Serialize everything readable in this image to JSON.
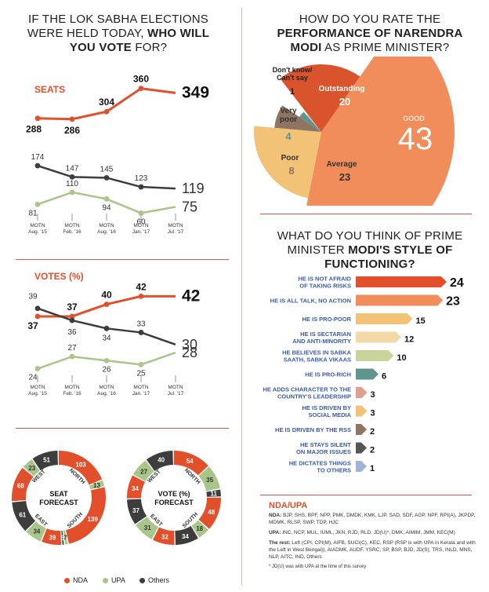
{
  "seats_chart": {
    "title_lines": [
      "IF THE LOK SABHA ELECTIONS",
      "WERE HELD TODAY,",
      "WHO WILL",
      "YOU VOTE",
      "FOR?"
    ],
    "label": "SEATS",
    "colors": {
      "nda": "#e2502b",
      "others": "#3d3d3d",
      "upa": "#a8c58a"
    }
  },
  "chart_data": [
    {
      "type": "line",
      "label": "SEATS",
      "categories": [
        "MOTN Aug. '15",
        "MOTN Feb. '16",
        "MOTN Aug. '16",
        "MOTN Jan. '17",
        "MOTN Jul. '17"
      ],
      "series": [
        {
          "name": "NDA",
          "values": [
            288,
            286,
            304,
            360,
            349
          ]
        },
        {
          "name": "Others",
          "values": [
            174,
            147,
            145,
            123,
            119
          ]
        },
        {
          "name": "UPA",
          "values": [
            81,
            110,
            94,
            60,
            75
          ]
        }
      ],
      "ylim": [
        40,
        380
      ]
    },
    {
      "type": "line",
      "label": "VOTES (%)",
      "categories": [
        "MOTN Aug. '15",
        "MOTN Feb. '16",
        "MOTN Aug. '16",
        "MOTN Jan. '17",
        "MOTN Jul. '17"
      ],
      "series": [
        {
          "name": "NDA",
          "values": [
            37,
            37,
            40,
            42,
            42
          ]
        },
        {
          "name": "Others",
          "values": [
            39,
            36,
            34,
            33,
            30
          ]
        },
        {
          "name": "UPA",
          "values": [
            24,
            27,
            26,
            25,
            28
          ]
        }
      ],
      "ylim": [
        20,
        45
      ]
    },
    {
      "type": "pie",
      "title_lines": [
        "HOW DO YOU RATE THE",
        "PERFORMANCE OF NARENDRA",
        "MODI",
        "AS PRIME MINISTER?"
      ],
      "slices": [
        {
          "label": "GOOD",
          "value": 43,
          "display": "43",
          "color": "#f08d5b"
        },
        {
          "label": "Average",
          "value": 23,
          "display": "23",
          "color": "#f2c277"
        },
        {
          "label": "Poor",
          "value": 8,
          "display": "8",
          "color": "#8f7560"
        },
        {
          "label": "Very poor",
          "value": 4,
          "display": "4",
          "color": "#5f958f"
        },
        {
          "label": "Don't know/ Can't say",
          "value": 1,
          "display": "1",
          "color": "#cccccc"
        },
        {
          "label": "Outstanding",
          "value": 20,
          "display": "20",
          "color": "#d9532c"
        }
      ]
    },
    {
      "type": "bar",
      "title_lines": [
        "WHAT DO YOU THINK OF PRIME",
        "MINISTER",
        "MODI'S STYLE OF",
        "FUNCTIONING?"
      ],
      "categories": [
        "HE IS NOT AFRAID OF TAKING RISKS",
        "HE IS ALL TALK, NO ACTION",
        "HE IS PRO-POOR",
        "HE IS SECTARIAN AND ANTI-MINORITY",
        "HE BELIEVES IN SABKA SAATH, SABKA VIKAAS",
        "HE IS PRO-RICH",
        "HE ADDS CHARACTER TO THE COUNTRY'S LEADERSHIP",
        "HE IS DRIVEN BY SOCIAL MEDIA",
        "HE IS DRIVEN BY THE RSS",
        "HE STAYS SILENT ON MAJOR ISSUES",
        "HE DICTATES THINGS TO OTHERS"
      ],
      "label_lines": [
        [
          "HE IS NOT AFRAID",
          "OF TAKING RISKS"
        ],
        [
          "HE IS ALL TALK, NO ACTION"
        ],
        [
          "HE IS PRO-POOR"
        ],
        [
          "HE IS SECTARIAN",
          "AND ANTI-MINORITY"
        ],
        [
          "HE BELIEVES IN SABKA",
          "SAATH, SABKA VIKAAS"
        ],
        [
          "HE IS PRO-RICH"
        ],
        [
          "HE ADDS CHARACTER TO THE",
          "COUNTRY'S LEADERSHIP"
        ],
        [
          "HE IS DRIVEN BY",
          "SOCIAL MEDIA"
        ],
        [
          "HE IS DRIVEN BY THE RSS"
        ],
        [
          "HE STAYS SILENT",
          "ON MAJOR ISSUES"
        ],
        [
          "HE DICTATES THINGS",
          "TO OTHERS"
        ]
      ],
      "values": [
        24,
        23,
        15,
        12,
        10,
        6,
        3,
        3,
        2,
        2,
        1
      ],
      "colors": [
        "#e2502b",
        "#f08d5b",
        "#f2c277",
        "#f4d9a8",
        "#c8d49a",
        "#5f958f",
        "#e2a08c",
        "#f2c277",
        "#8f7560",
        "#555555",
        "#9fb4d8"
      ]
    },
    {
      "type": "pie",
      "title_lines": [
        "SEAT",
        "FORECAST"
      ],
      "regions": [
        "WEST",
        "NORTH",
        "SOUTH",
        "EAST"
      ],
      "segments": [
        {
          "region": "WEST",
          "party": "NDA",
          "value": 103
        },
        {
          "region": "WEST",
          "party": "UPA",
          "value": 13
        },
        {
          "region": "NORTH",
          "party": "NDA",
          "value": 139
        },
        {
          "region": "NORTH",
          "party": "UPA",
          "value": 7
        },
        {
          "region": "NORTH",
          "party": "Others",
          "value": 5
        },
        {
          "region": "SOUTH",
          "party": "NDA",
          "value": 39
        },
        {
          "region": "SOUTH",
          "party": "UPA",
          "value": 34
        },
        {
          "region": "SOUTH",
          "party": "Others",
          "value": 61
        },
        {
          "region": "EAST",
          "party": "NDA",
          "value": 68
        },
        {
          "region": "EAST",
          "party": "UPA",
          "value": 23
        },
        {
          "region": "EAST",
          "party": "Others",
          "value": 51
        }
      ]
    },
    {
      "type": "pie",
      "title_lines": [
        "VOTE (%)",
        "FORECAST"
      ],
      "regions": [
        "WEST",
        "NORTH",
        "SOUTH",
        "EAST"
      ],
      "segments": [
        {
          "region": "WEST",
          "party": "NDA",
          "value": 54
        },
        {
          "region": "WEST",
          "party": "UPA",
          "value": 35
        },
        {
          "region": "WEST",
          "party": "Others",
          "value": 11
        },
        {
          "region": "NORTH",
          "party": "NDA",
          "value": 48
        },
        {
          "region": "NORTH",
          "party": "UPA",
          "value": 18
        },
        {
          "region": "NORTH",
          "party": "Others",
          "value": 34
        },
        {
          "region": "SOUTH",
          "party": "NDA",
          "value": 32
        },
        {
          "region": "SOUTH",
          "party": "UPA",
          "value": 31
        },
        {
          "region": "SOUTH",
          "party": "Others",
          "value": 37
        },
        {
          "region": "EAST",
          "party": "NDA",
          "value": 34
        },
        {
          "region": "EAST",
          "party": "UPA",
          "value": 27
        },
        {
          "region": "EAST",
          "party": "Others",
          "value": 40
        }
      ]
    }
  ],
  "x_ticks": [
    [
      "MOTN",
      "Aug. '15"
    ],
    [
      "MOTN",
      "Feb. '16"
    ],
    [
      "MOTN",
      "Aug. '16"
    ],
    [
      "MOTN",
      "Jan. '17"
    ],
    [
      "MOTN",
      "Jul. '17"
    ]
  ],
  "legend": [
    {
      "name": "NDA",
      "color": "#e2502b"
    },
    {
      "name": "UPA",
      "color": "#a8c58a"
    },
    {
      "name": "Others",
      "color": "#3d3d3d"
    }
  ],
  "notes": {
    "heading": "NDA/UPA",
    "nda_label": "NDA:",
    "nda_text": "BJP, SHS, BPF, NPP, PMK, DMDK, KMK, LJP, SAD, SDF, AGP, NPF, RPI(A), JKPDP, MDMK, RLSP, SWP, TDP, HJC",
    "upa_label": "UPA:",
    "upa_text": "INC, NCP, MUL, IUML, JKN, RJD, RLD, JD(U)*, DMK, AIMIM, JMM, KEC(M)",
    "rest_label": "The rest:",
    "rest_text": "Left (CPI, CPI(M), AIFB, SUCI(C), KEC, RSP (RSP is with UPA in Kerala and with the Left in West Bengal)), AIADMK, AUDF, YSRC, SP, BSP, BJD, JD(S), TRS, INLD, MNS, NLP, AITC, IND, Others",
    "footnote": "* JD(U) was with UPA at the time of this survey"
  }
}
